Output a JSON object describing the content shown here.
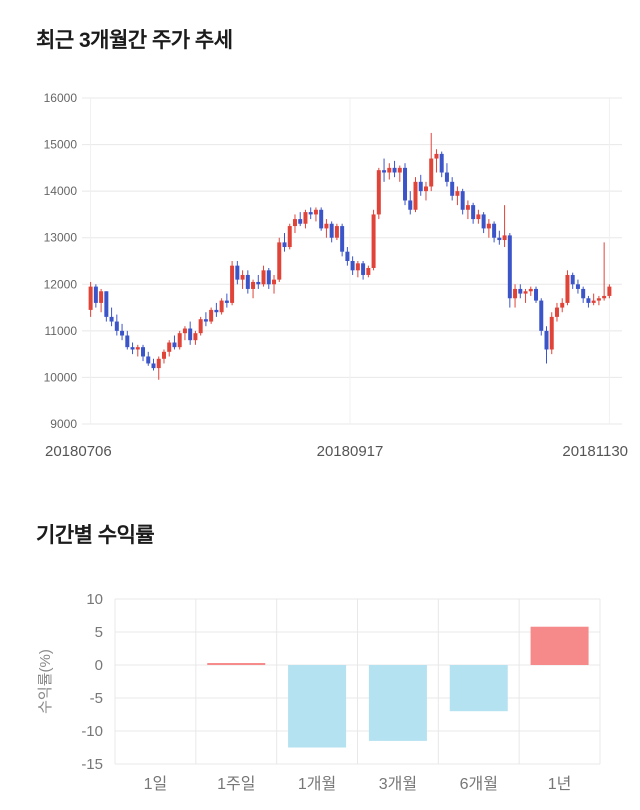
{
  "chart_data": [
    {
      "type": "candlestick",
      "title": "최근 3개월간 주가 추세",
      "ylim": [
        9000,
        16000
      ],
      "yticks": [
        16000,
        15000,
        14000,
        13000,
        12000,
        11000,
        10000,
        9000
      ],
      "xtick_labels": [
        "20180706",
        "20180917",
        "20181130"
      ],
      "legend": "red = up day, blue = down day",
      "colors": {
        "up": "#e04338",
        "down": "#3b55c9",
        "grid": "#e8e8e8",
        "vgrid": "#f0f0f0",
        "axis_text": "#666666",
        "date_text": "#555555"
      },
      "candles": [
        [
          11450,
          12050,
          11300,
          11950
        ],
        [
          11950,
          12000,
          11500,
          11600
        ],
        [
          11600,
          11900,
          11400,
          11850
        ],
        [
          11850,
          11850,
          11200,
          11300
        ],
        [
          11300,
          11500,
          11100,
          11200
        ],
        [
          11200,
          11350,
          10900,
          11000
        ],
        [
          11000,
          11150,
          10800,
          10900
        ],
        [
          10900,
          11000,
          10600,
          10650
        ],
        [
          10650,
          10750,
          10500,
          10600
        ],
        [
          10600,
          10700,
          10450,
          10650
        ],
        [
          10650,
          10700,
          10350,
          10450
        ],
        [
          10450,
          10550,
          10250,
          10300
        ],
        [
          10300,
          10400,
          10150,
          10200
        ],
        [
          10200,
          10450,
          9950,
          10400
        ],
        [
          10400,
          10600,
          10300,
          10550
        ],
        [
          10550,
          10800,
          10450,
          10750
        ],
        [
          10750,
          10900,
          10600,
          10650
        ],
        [
          10650,
          11000,
          10600,
          10950
        ],
        [
          10950,
          11100,
          10800,
          11050
        ],
        [
          11050,
          11200,
          10700,
          10800
        ],
        [
          10800,
          11000,
          10700,
          10950
        ],
        [
          10950,
          11300,
          10900,
          11250
        ],
        [
          11250,
          11400,
          11100,
          11200
        ],
        [
          11200,
          11500,
          11150,
          11450
        ],
        [
          11450,
          11600,
          11300,
          11400
        ],
        [
          11400,
          11700,
          11350,
          11650
        ],
        [
          11650,
          11800,
          11500,
          11600
        ],
        [
          11600,
          12500,
          11550,
          12400
        ],
        [
          12400,
          12500,
          12000,
          12100
        ],
        [
          12100,
          12300,
          11900,
          12200
        ],
        [
          12200,
          12300,
          11800,
          11900
        ],
        [
          11900,
          12100,
          11700,
          12050
        ],
        [
          12050,
          12200,
          11900,
          12000
        ],
        [
          12000,
          12400,
          11950,
          12300
        ],
        [
          12300,
          12350,
          11900,
          12000
        ],
        [
          12000,
          12200,
          11800,
          12100
        ],
        [
          12100,
          13000,
          12050,
          12900
        ],
        [
          12900,
          13100,
          12700,
          12800
        ],
        [
          12800,
          13300,
          12750,
          13250
        ],
        [
          13250,
          13500,
          13100,
          13400
        ],
        [
          13400,
          13550,
          13250,
          13300
        ],
        [
          13300,
          13600,
          13200,
          13550
        ],
        [
          13550,
          13650,
          13400,
          13500
        ],
        [
          13500,
          13650,
          13350,
          13600
        ],
        [
          13600,
          13650,
          13150,
          13200
        ],
        [
          13200,
          13400,
          13000,
          13300
        ],
        [
          13300,
          13350,
          12900,
          13000
        ],
        [
          13000,
          13300,
          12950,
          13250
        ],
        [
          13250,
          13300,
          12600,
          12700
        ],
        [
          12700,
          12800,
          12400,
          12500
        ],
        [
          12500,
          12600,
          12200,
          12300
        ],
        [
          12300,
          12500,
          12150,
          12450
        ],
        [
          12450,
          12500,
          12100,
          12200
        ],
        [
          12200,
          12400,
          12150,
          12350
        ],
        [
          12350,
          13600,
          12300,
          13500
        ],
        [
          13500,
          14500,
          13400,
          14450
        ],
        [
          14450,
          14700,
          14200,
          14400
        ],
        [
          14400,
          14600,
          14250,
          14500
        ],
        [
          14500,
          14650,
          14300,
          14400
        ],
        [
          14400,
          14550,
          14200,
          14500
        ],
        [
          14500,
          14600,
          13700,
          13800
        ],
        [
          13800,
          14000,
          13500,
          13600
        ],
        [
          13600,
          14300,
          13550,
          14200
        ],
        [
          14200,
          14350,
          13900,
          14000
        ],
        [
          14000,
          14200,
          13800,
          14100
        ],
        [
          14100,
          15250,
          14000,
          14700
        ],
        [
          14700,
          14900,
          14400,
          14800
        ],
        [
          14800,
          14850,
          14300,
          14400
        ],
        [
          14400,
          14600,
          14100,
          14200
        ],
        [
          14200,
          14300,
          13800,
          13900
        ],
        [
          13900,
          14100,
          13700,
          14000
        ],
        [
          14000,
          14050,
          13500,
          13600
        ],
        [
          13600,
          13800,
          13400,
          13700
        ],
        [
          13700,
          13750,
          13300,
          13400
        ],
        [
          13400,
          13600,
          13300,
          13500
        ],
        [
          13500,
          13550,
          13100,
          13200
        ],
        [
          13200,
          13400,
          13000,
          13300
        ],
        [
          13300,
          13350,
          12900,
          13000
        ],
        [
          13000,
          13150,
          12850,
          12950
        ],
        [
          12950,
          13700,
          12800,
          13050
        ],
        [
          13050,
          13100,
          11500,
          11700
        ],
        [
          11700,
          12000,
          11500,
          11900
        ],
        [
          11900,
          12000,
          11700,
          11800
        ],
        [
          11800,
          11900,
          11600,
          11850
        ],
        [
          11850,
          11950,
          11750,
          11900
        ],
        [
          11900,
          11950,
          11600,
          11650
        ],
        [
          11650,
          11700,
          10900,
          11000
        ],
        [
          11000,
          11100,
          10300,
          10600
        ],
        [
          10600,
          11400,
          10500,
          11300
        ],
        [
          11300,
          11600,
          11200,
          11500
        ],
        [
          11500,
          11700,
          11400,
          11600
        ],
        [
          11600,
          12300,
          11550,
          12200
        ],
        [
          12200,
          12250,
          11900,
          12000
        ],
        [
          12000,
          12100,
          11800,
          11900
        ],
        [
          11900,
          11950,
          11600,
          11700
        ],
        [
          11700,
          11750,
          11500,
          11600
        ],
        [
          11600,
          11800,
          11550,
          11650
        ],
        [
          11650,
          11750,
          11550,
          11700
        ],
        [
          11700,
          12900,
          11650,
          11750
        ],
        [
          11750,
          12000,
          11700,
          11950
        ]
      ]
    },
    {
      "type": "bar",
      "title": "기간별 수익률",
      "ylabel": "수익률(%)",
      "categories": [
        "1일",
        "1주일",
        "1개월",
        "3개월",
        "6개월",
        "1년"
      ],
      "values": [
        0.0,
        0.3,
        -12.5,
        -11.5,
        -7.0,
        5.8
      ],
      "ylim": [
        -15,
        10
      ],
      "yticks": [
        10,
        5,
        0,
        -5,
        -10,
        -15
      ],
      "grid": true,
      "legend_position": "none",
      "colors": {
        "positive": "#f68a8a",
        "negative": "#b5e2f0",
        "grid": "#e8e8e8",
        "axis_text": "#777777",
        "ylabel_text": "#888888"
      }
    }
  ]
}
